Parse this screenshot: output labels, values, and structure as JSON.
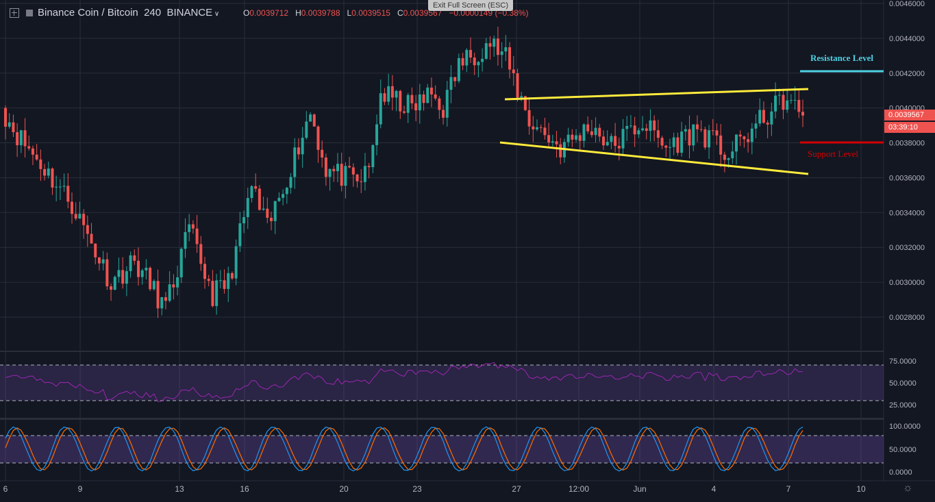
{
  "header": {
    "symbol": "Binance Coin / Bitcoin",
    "interval": "240",
    "exchange": "BINANCE",
    "o_label": "O",
    "o_value": "0.0039712",
    "h_label": "H",
    "h_value": "0.0039788",
    "l_label": "L",
    "l_value": "0.0039515",
    "c_label": "C",
    "c_value": "0.0039567",
    "change": "−0.0000149 (−0.38%)"
  },
  "exit_fullscreen": "Exit Full Screen (ESC)",
  "price_axis": [
    "0.0046000",
    "0.0044000",
    "0.0042000",
    "0.0040000",
    "0.0038000",
    "0.0036000",
    "0.0034000",
    "0.0032000",
    "0.0030000",
    "0.0028000"
  ],
  "current_price_label": "0.0039567",
  "countdown_label": "03:39:10",
  "rsi_axis": [
    "75.0000",
    "50.0000",
    "25.0000"
  ],
  "stoch_axis": [
    "100.0000",
    "50.0000",
    "0.0000"
  ],
  "time_axis": [
    "6",
    "9",
    "13",
    "16",
    "20",
    "23",
    "27",
    "12:00",
    "Jun",
    "4",
    "7",
    "10"
  ],
  "annotations": {
    "resistance_label": "Resistance Level",
    "support_label": "Support Level"
  },
  "colors": {
    "background": "#131722",
    "up": "#26a69a",
    "down": "#ef5350",
    "trendline": "#ffeb3b",
    "resistance": "#4dd0e1",
    "support": "#d50000",
    "rsi_line": "#9c27b0",
    "stoch_k": "#2196f3",
    "stoch_d": "#ff6d00"
  },
  "chart_data": {
    "type": "candlestick",
    "ylim": [
      0.00265,
      0.0046
    ],
    "anchors": [
      [
        0.004,
        0.00385,
        4
      ],
      [
        0.00385,
        0.00368,
        6
      ],
      [
        0.00368,
        0.00345,
        8
      ],
      [
        0.00345,
        0.003,
        10
      ],
      [
        0.003,
        0.00312,
        6
      ],
      [
        0.00312,
        0.00285,
        8
      ],
      [
        0.00285,
        0.0033,
        6
      ],
      [
        0.0033,
        0.00293,
        6
      ],
      [
        0.00293,
        0.003,
        4
      ],
      [
        0.003,
        0.00355,
        6
      ],
      [
        0.00355,
        0.0033,
        4
      ],
      [
        0.0033,
        0.00385,
        9
      ],
      [
        0.00385,
        0.00398,
        2
      ],
      [
        0.00398,
        0.00365,
        4
      ],
      [
        0.00365,
        0.00357,
        8
      ],
      [
        0.00357,
        0.00364,
        3
      ],
      [
        0.00364,
        0.00408,
        3
      ],
      [
        0.00408,
        0.004,
        8
      ],
      [
        0.004,
        0.00408,
        5
      ],
      [
        0.00408,
        0.004,
        3
      ],
      [
        0.004,
        0.00425,
        4
      ],
      [
        0.00425,
        0.00438,
        8
      ],
      [
        0.00438,
        0.00428,
        4
      ],
      [
        0.00428,
        0.00393,
        6
      ],
      [
        0.00393,
        0.00377,
        8
      ],
      [
        0.00377,
        0.0039,
        8
      ],
      [
        0.0039,
        0.00378,
        5
      ],
      [
        0.00378,
        0.00392,
        8
      ],
      [
        0.00392,
        0.00377,
        6
      ],
      [
        0.00377,
        0.00388,
        8
      ],
      [
        0.00388,
        0.00373,
        8
      ],
      [
        0.00373,
        0.00392,
        8
      ],
      [
        0.00392,
        0.00405,
        6
      ],
      [
        0.00405,
        0.00396,
        5
      ]
    ]
  }
}
